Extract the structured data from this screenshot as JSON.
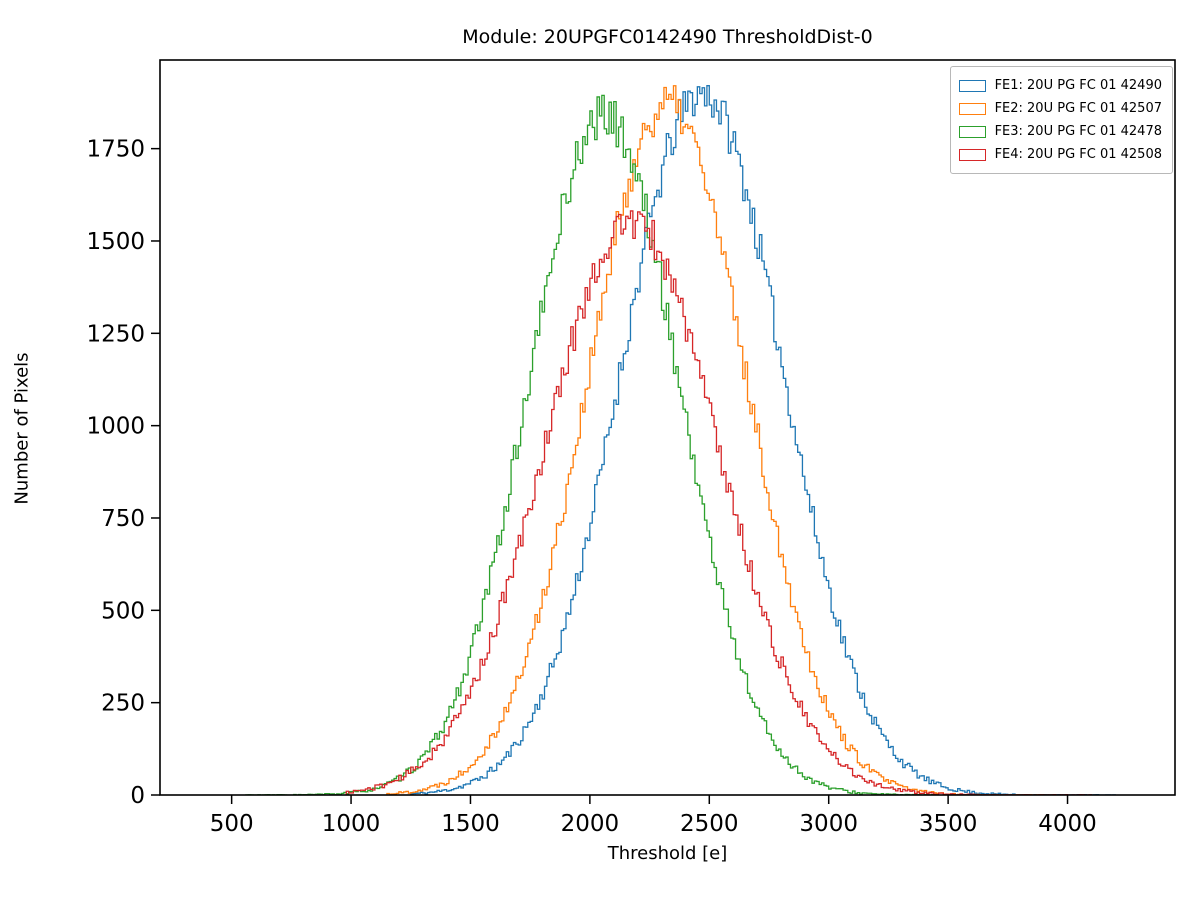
{
  "chart_data": {
    "type": "histogram-step",
    "title": "Module: 20UPGFC0142490 ThresholdDist-0",
    "xlabel": "Threshold [e]",
    "ylabel": "Number of Pixels",
    "xlim": [
      200,
      4450
    ],
    "ylim": [
      0,
      1990
    ],
    "xticks": [
      500,
      1000,
      1500,
      2000,
      2500,
      3000,
      3500,
      4000
    ],
    "yticks": [
      0,
      250,
      500,
      750,
      1000,
      1250,
      1500,
      1750
    ],
    "bin_width": 10,
    "grid": false,
    "legend_position": "upper right",
    "series": [
      {
        "name": "FE1: 20U PG FC 01 42490",
        "color": "#1f77b4",
        "mean": 2470,
        "sigma": 340,
        "peak": 1900,
        "range": [
          1250,
          4200
        ],
        "seed": 11
      },
      {
        "name": "FE2: 20U PG FC 01 42507",
        "color": "#ff7f0e",
        "mean": 2325,
        "sigma": 330,
        "peak": 1870,
        "range": [
          1150,
          3950
        ],
        "seed": 22
      },
      {
        "name": "FE3: 20U PG FC 01 42478",
        "color": "#2ca02c",
        "mean": 2060,
        "sigma": 315,
        "peak": 1840,
        "range": [
          560,
          3450
        ],
        "seed": 33
      },
      {
        "name": "FE4: 20U PG FC 01 42508",
        "color": "#d62728",
        "mean": 2175,
        "sigma": 365,
        "peak": 1550,
        "range": [
          980,
          4100
        ],
        "seed": 44
      }
    ]
  }
}
